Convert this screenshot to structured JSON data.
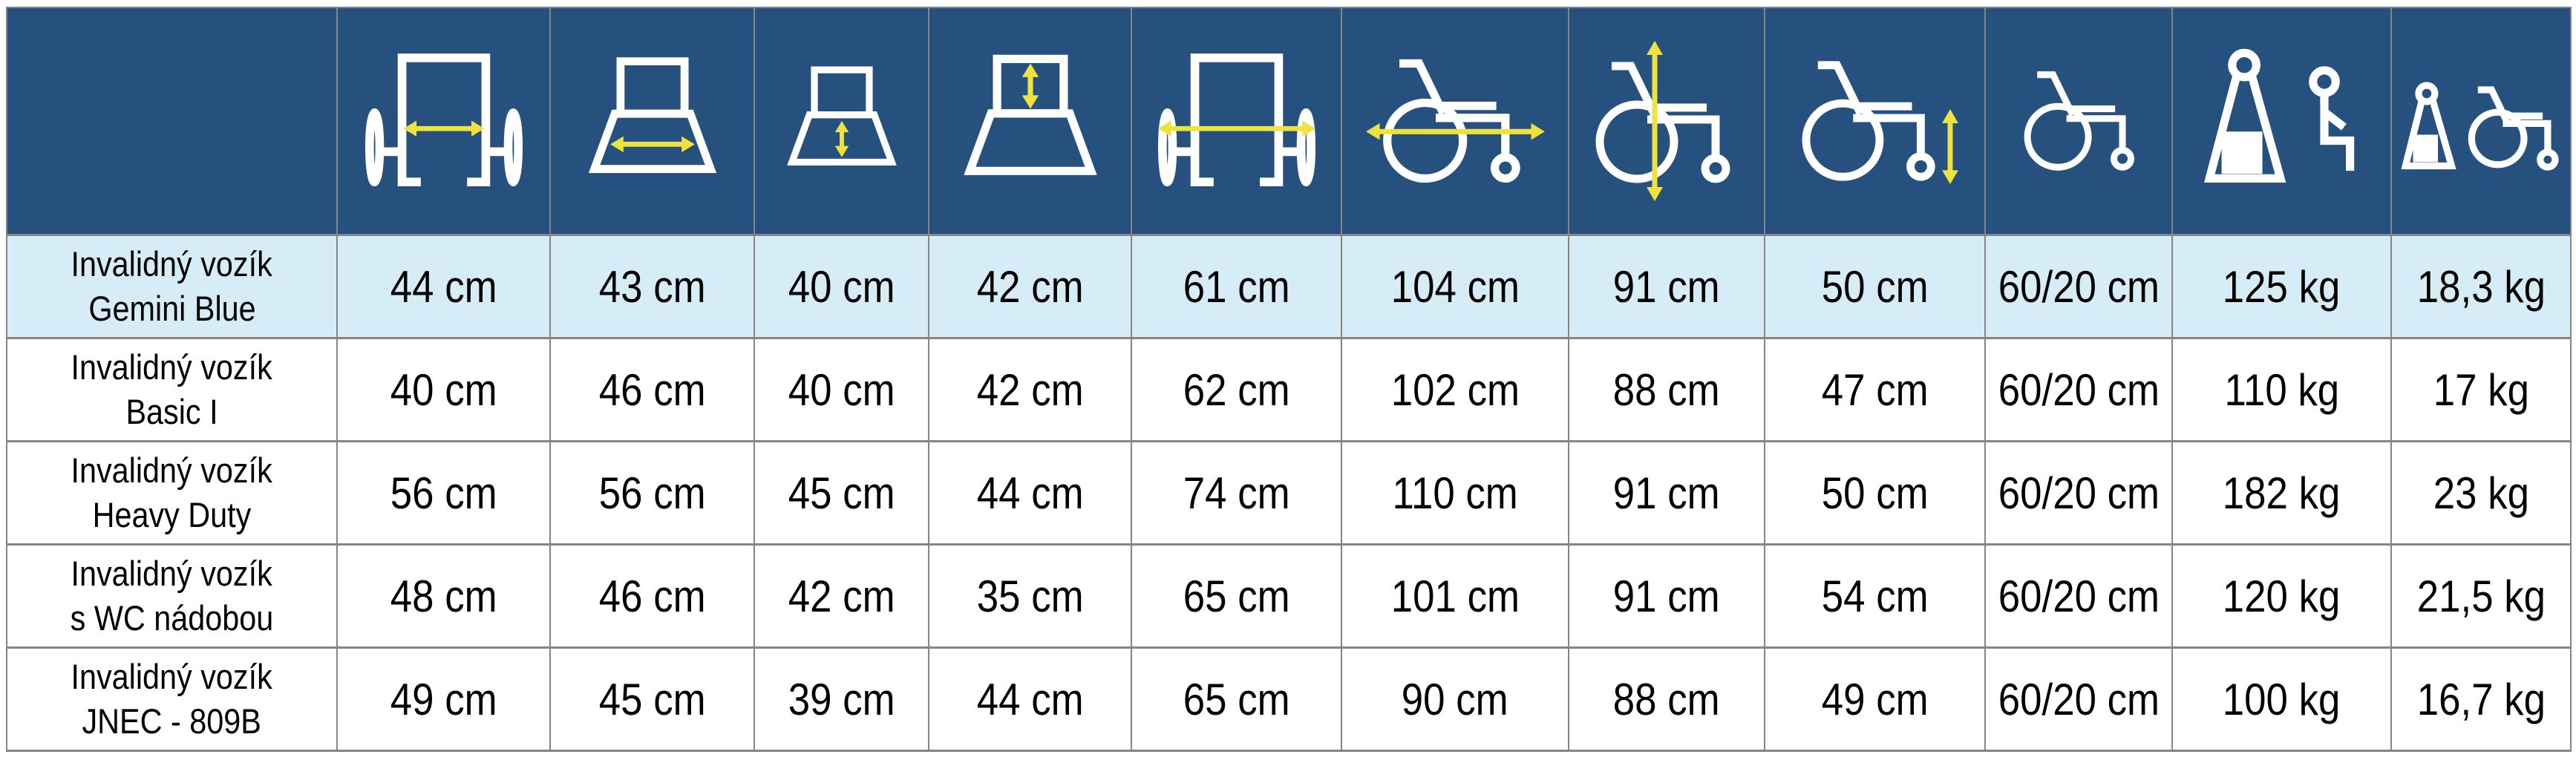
{
  "page": {
    "description": "Wheelchair parameter comparison table",
    "language": "sk"
  },
  "colors": {
    "header_bg": "#26517f",
    "highlight_row_bg": "#d6edf8",
    "grid_line": "#858585",
    "icon_stroke": "#ffffff",
    "arrow_yellow": "#efe23e",
    "text": "#000000",
    "row_bg": "#ffffff"
  },
  "chart_data": {
    "type": "table",
    "title": "",
    "columns": [
      {
        "key": "product",
        "icon": null,
        "label": ""
      },
      {
        "key": "armrest-width",
        "icon": "seat-width-between-armrests-icon",
        "label": ""
      },
      {
        "key": "seat-width",
        "icon": "seat-width-icon",
        "label": ""
      },
      {
        "key": "seat-depth",
        "icon": "seat-depth-icon",
        "label": ""
      },
      {
        "key": "backrest-height",
        "icon": "backrest-height-icon",
        "label": ""
      },
      {
        "key": "total-width",
        "icon": "total-width-icon",
        "label": ""
      },
      {
        "key": "total-length",
        "icon": "total-length-icon",
        "label": ""
      },
      {
        "key": "total-height",
        "icon": "total-height-icon",
        "label": ""
      },
      {
        "key": "seat-height",
        "icon": "seat-height-icon",
        "label": ""
      },
      {
        "key": "wheel-size",
        "icon": "wheel-size-icon",
        "label": ""
      },
      {
        "key": "max-load",
        "icon": "max-user-weight-icon",
        "label": ""
      },
      {
        "key": "chair-weight",
        "icon": "wheelchair-weight-icon",
        "label": ""
      }
    ],
    "rows": [
      {
        "name": "Invalidný vozík Gemini Blue",
        "name_lines": [
          "Invalidný vozík",
          "Gemini Blue"
        ],
        "highlighted": true,
        "values": [
          "44 cm",
          "43 cm",
          "40 cm",
          "42 cm",
          "61 cm",
          "104 cm",
          "91 cm",
          "50 cm",
          "60/20 cm",
          "125 kg",
          "18,3 kg"
        ]
      },
      {
        "name": "Invalidný vozík Basic I",
        "name_lines": [
          "Invalidný vozík",
          "Basic I"
        ],
        "highlighted": false,
        "values": [
          "40 cm",
          "46 cm",
          "40 cm",
          "42 cm",
          "62 cm",
          "102 cm",
          "88 cm",
          "47 cm",
          "60/20 cm",
          "110 kg",
          "17 kg"
        ]
      },
      {
        "name": "Invalidný vozík Heavy Duty",
        "name_lines": [
          "Invalidný vozík",
          "Heavy Duty"
        ],
        "highlighted": false,
        "values": [
          "56 cm",
          "56 cm",
          "45 cm",
          "44 cm",
          "74 cm",
          "110 cm",
          "91 cm",
          "50 cm",
          "60/20 cm",
          "182 kg",
          "23 kg"
        ]
      },
      {
        "name": "Invalidný vozík s WC nádobou",
        "name_lines": [
          "Invalidný vozík",
          "s WC nádobou"
        ],
        "highlighted": false,
        "values": [
          "48 cm",
          "46 cm",
          "42 cm",
          "35 cm",
          "65 cm",
          "101 cm",
          "91 cm",
          "54 cm",
          "60/20 cm",
          "120 kg",
          "21,5 kg"
        ]
      },
      {
        "name": "Invalidný vozík JNEC - 809B",
        "name_lines": [
          "Invalidný vozík",
          "JNEC - 809B"
        ],
        "highlighted": false,
        "values": [
          "49 cm",
          "45 cm",
          "39 cm",
          "44 cm",
          "65 cm",
          "90 cm",
          "88 cm",
          "49 cm",
          "60/20 cm",
          "100 kg",
          "16,7 kg"
        ]
      }
    ]
  }
}
